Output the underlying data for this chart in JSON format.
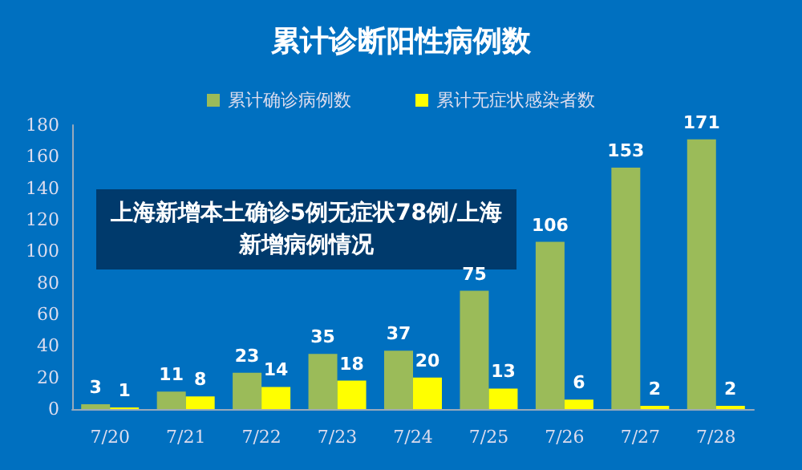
{
  "chart_data": {
    "type": "bar",
    "title": "累计诊断阳性病例数",
    "annotations": [
      "上海新增本土确诊5例无症状78例/上海新增病例情况"
    ],
    "categories": [
      "7/20",
      "7/21",
      "7/22",
      "7/23",
      "7/24",
      "7/25",
      "7/26",
      "7/27",
      "7/28"
    ],
    "series": [
      {
        "name": "累计确诊病例数",
        "color": "#9bbb59",
        "values": [
          3,
          11,
          23,
          35,
          37,
          75,
          106,
          153,
          171
        ]
      },
      {
        "name": "累计无症状感染者数",
        "color": "#ffff00",
        "values": [
          1,
          8,
          14,
          18,
          20,
          13,
          6,
          2,
          2
        ]
      }
    ],
    "ylim": [
      0,
      180
    ],
    "yticks": [
      0,
      20,
      40,
      60,
      80,
      100,
      120,
      140,
      160,
      180
    ],
    "data_labels": true,
    "grid": false,
    "legend": "top"
  }
}
